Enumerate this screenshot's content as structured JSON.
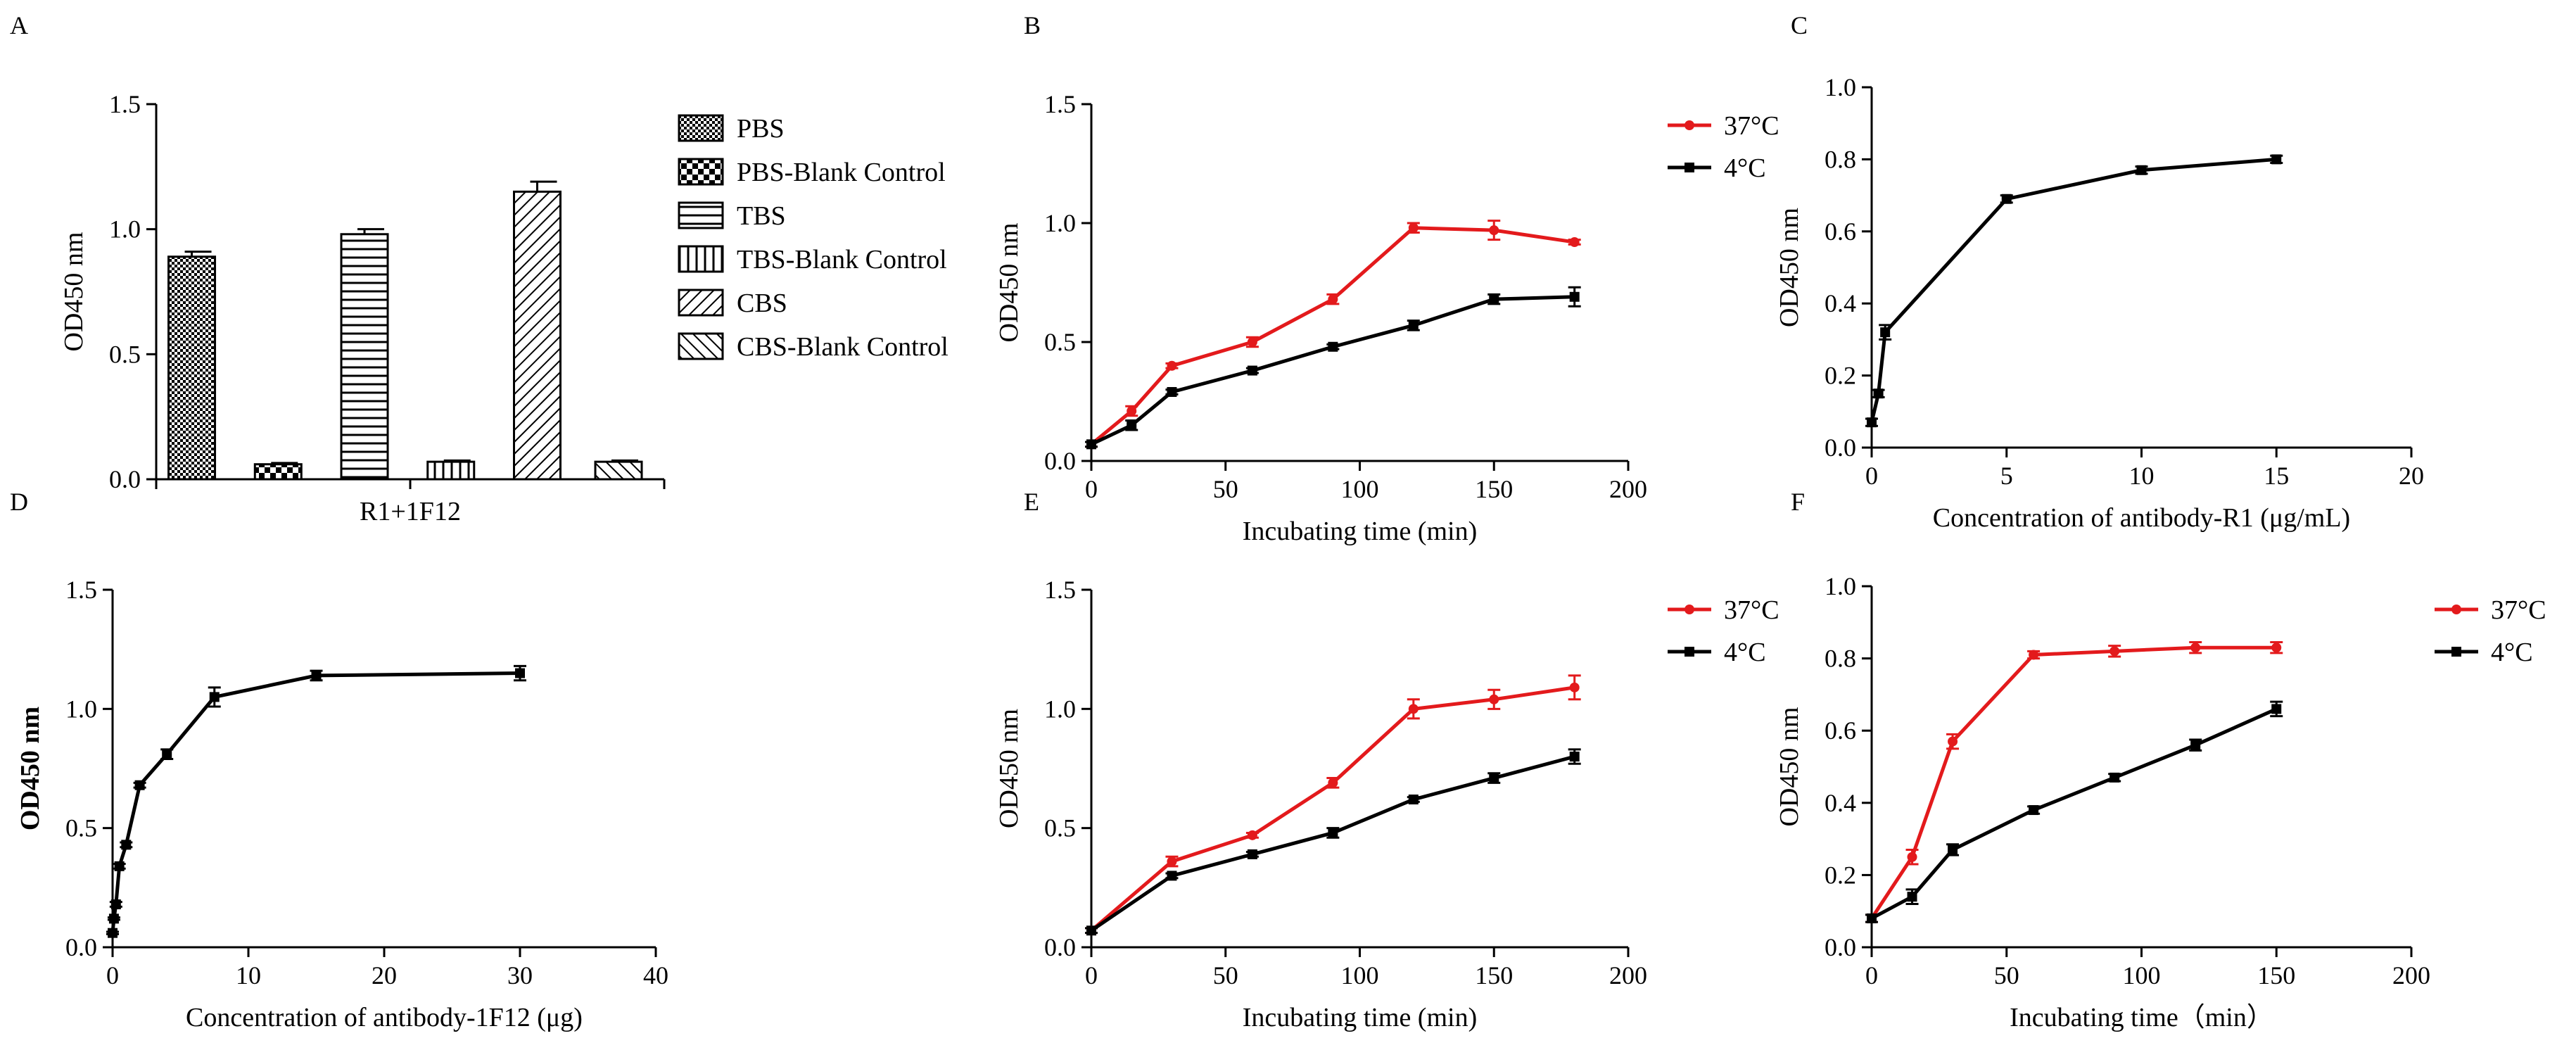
{
  "colors": {
    "red": "#e31a1c",
    "black": "#000000"
  },
  "chart_data": [
    {
      "id": "A",
      "panel": "A",
      "type": "bar",
      "ylabel": "OD450 nm",
      "xlabel": "R1+1F12",
      "ylim": [
        0,
        1.5
      ],
      "yticks": [
        "0.0",
        "0.5",
        "1.0",
        "1.5"
      ],
      "legend_position": "right",
      "series": [
        {
          "name": "PBS",
          "value": 0.89,
          "error": 0.02,
          "pattern": "checker-fine"
        },
        {
          "name": "PBS-Blank Control",
          "value": 0.06,
          "error": 0.005,
          "pattern": "checker-coarse"
        },
        {
          "name": "TBS",
          "value": 0.98,
          "error": 0.02,
          "pattern": "horizontal"
        },
        {
          "name": "TBS-Blank Control",
          "value": 0.07,
          "error": 0.005,
          "pattern": "vertical"
        },
        {
          "name": "CBS",
          "value": 1.15,
          "error": 0.04,
          "pattern": "diag-up"
        },
        {
          "name": "CBS-Blank Control",
          "value": 0.07,
          "error": 0.005,
          "pattern": "diag-down"
        }
      ]
    },
    {
      "id": "B",
      "panel": "B",
      "type": "line",
      "xlabel": "Incubating time (min)",
      "ylabel": "OD450 nm",
      "xlim": [
        0,
        200
      ],
      "ylim": [
        0,
        1.5
      ],
      "xticks": [
        "0",
        "50",
        "100",
        "150",
        "200"
      ],
      "yticks": [
        "0.0",
        "0.5",
        "1.0",
        "1.5"
      ],
      "legend_position": "top-right",
      "series": [
        {
          "name": "37°C",
          "color": "#e31a1c",
          "x": [
            0,
            15,
            30,
            60,
            90,
            120,
            150,
            180
          ],
          "y": [
            0.07,
            0.21,
            0.4,
            0.5,
            0.68,
            0.98,
            0.97,
            0.92
          ],
          "err": [
            0.01,
            0.02,
            0.01,
            0.02,
            0.02,
            0.02,
            0.04,
            0.01
          ]
        },
        {
          "name": "4°C",
          "color": "#000000",
          "x": [
            0,
            15,
            30,
            60,
            90,
            120,
            150,
            180
          ],
          "y": [
            0.07,
            0.15,
            0.29,
            0.38,
            0.48,
            0.57,
            0.68,
            0.69
          ],
          "err": [
            0.01,
            0.02,
            0.01,
            0.01,
            0.01,
            0.02,
            0.02,
            0.04
          ]
        }
      ]
    },
    {
      "id": "C",
      "panel": "C",
      "type": "line",
      "xlabel": "Concentration of antibody-R1 (μg/mL)",
      "ylabel": "OD450 nm",
      "xlim": [
        0,
        20
      ],
      "ylim": [
        0,
        1.0
      ],
      "xticks": [
        "0",
        "5",
        "10",
        "15",
        "20"
      ],
      "yticks": [
        "0.0",
        "0.2",
        "0.4",
        "0.6",
        "0.8",
        "1.0"
      ],
      "series": [
        {
          "name": "antibody-R1",
          "color": "#000000",
          "x": [
            0,
            0.25,
            0.5,
            5,
            10,
            15
          ],
          "y": [
            0.07,
            0.15,
            0.32,
            0.69,
            0.77,
            0.8
          ],
          "err": [
            0.01,
            0.01,
            0.02,
            0.01,
            0.01,
            0.01
          ]
        }
      ]
    },
    {
      "id": "D",
      "panel": "D",
      "type": "line",
      "xlabel": "Concentration of antibody-1F12  (μg)",
      "ylabel": "OD450 nm",
      "xlim": [
        0,
        40
      ],
      "ylim": [
        0,
        1.5
      ],
      "xticks": [
        "0",
        "10",
        "20",
        "30",
        "40"
      ],
      "yticks": [
        "0.0",
        "0.5",
        "1.0",
        "1.5"
      ],
      "series": [
        {
          "name": "antibody-1F12",
          "color": "#000000",
          "x": [
            0,
            0.1,
            0.25,
            0.5,
            1,
            2,
            4,
            7.5,
            15,
            30
          ],
          "y": [
            0.06,
            0.12,
            0.18,
            0.34,
            0.43,
            0.68,
            0.81,
            1.05,
            1.14,
            1.15
          ],
          "err": [
            0.005,
            0.005,
            0.01,
            0.01,
            0.01,
            0.01,
            0.02,
            0.04,
            0.02,
            0.03
          ]
        }
      ]
    },
    {
      "id": "E",
      "panel": "E",
      "type": "line",
      "xlabel": "Incubating time (min)",
      "ylabel": "OD450 nm",
      "xlim": [
        0,
        200
      ],
      "ylim": [
        0,
        1.5
      ],
      "xticks": [
        "0",
        "50",
        "100",
        "150",
        "200"
      ],
      "yticks": [
        "0.0",
        "0.5",
        "1.0",
        "1.5"
      ],
      "legend_position": "top-right",
      "series": [
        {
          "name": "37°C",
          "color": "#e31a1c",
          "x": [
            0,
            30,
            60,
            90,
            120,
            150,
            180
          ],
          "y": [
            0.07,
            0.36,
            0.47,
            0.69,
            1.0,
            1.04,
            1.09
          ],
          "err": [
            0.01,
            0.02,
            0.01,
            0.02,
            0.04,
            0.04,
            0.05
          ]
        },
        {
          "name": "4°C",
          "color": "#000000",
          "x": [
            0,
            30,
            60,
            90,
            120,
            150,
            180
          ],
          "y": [
            0.07,
            0.3,
            0.39,
            0.48,
            0.62,
            0.71,
            0.8
          ],
          "err": [
            0.01,
            0.01,
            0.01,
            0.02,
            0.01,
            0.02,
            0.03
          ]
        }
      ]
    },
    {
      "id": "F",
      "panel": "F",
      "type": "line",
      "xlabel": "Incubating time（min）",
      "ylabel": "OD450 nm",
      "xlim": [
        0,
        200
      ],
      "ylim": [
        0,
        1.0
      ],
      "xticks": [
        "0",
        "50",
        "100",
        "150",
        "200"
      ],
      "yticks": [
        "0.0",
        "0.2",
        "0.4",
        "0.6",
        "0.8",
        "1.0"
      ],
      "legend_position": "top-right",
      "series": [
        {
          "name": "37°C",
          "color": "#e31a1c",
          "x": [
            0,
            15,
            30,
            60,
            90,
            120,
            150
          ],
          "y": [
            0.08,
            0.25,
            0.57,
            0.81,
            0.82,
            0.83,
            0.83
          ],
          "err": [
            0.01,
            0.02,
            0.02,
            0.01,
            0.015,
            0.015,
            0.015
          ]
        },
        {
          "name": "4°C",
          "color": "#000000",
          "x": [
            0,
            15,
            30,
            60,
            90,
            120,
            150
          ],
          "y": [
            0.08,
            0.14,
            0.27,
            0.38,
            0.47,
            0.56,
            0.66
          ],
          "err": [
            0.01,
            0.02,
            0.015,
            0.01,
            0.01,
            0.015,
            0.02
          ]
        }
      ]
    }
  ]
}
